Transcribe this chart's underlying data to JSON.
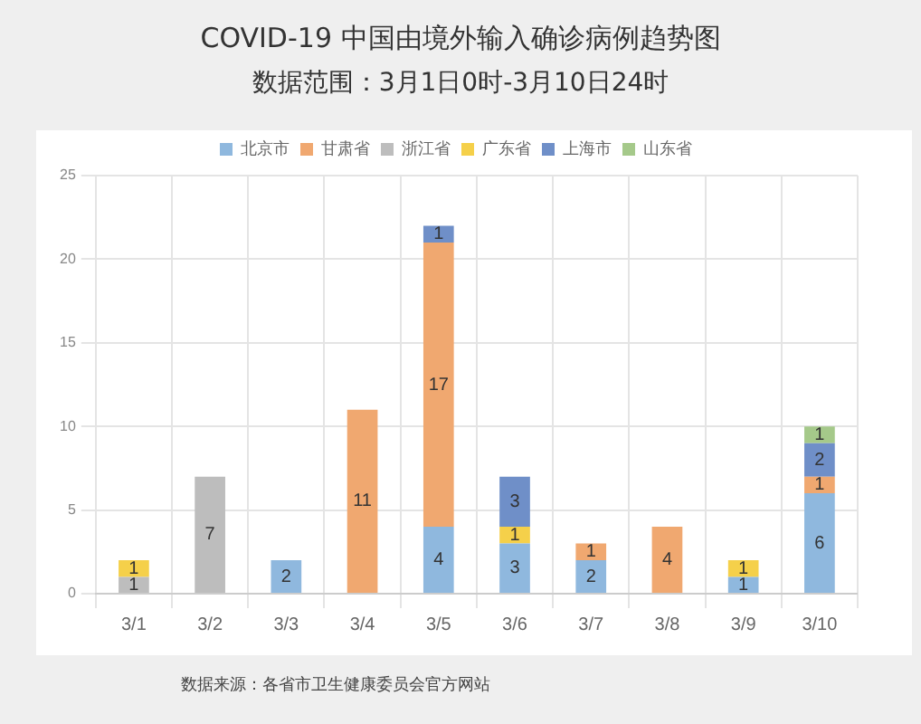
{
  "chart_data": {
    "type": "bar",
    "title": "COVID-19 中国由境外输入确诊病例趋势图",
    "subtitle": "数据范围：3月1日0时-3月10日24时",
    "categories": [
      "3/1",
      "3/2",
      "3/3",
      "3/4",
      "3/5",
      "3/6",
      "3/7",
      "3/8",
      "3/9",
      "3/10"
    ],
    "series": [
      {
        "name": "北京市",
        "color": "#8fb8de",
        "values": [
          null,
          null,
          2,
          null,
          4,
          3,
          2,
          null,
          1,
          6
        ]
      },
      {
        "name": "甘肃省",
        "color": "#f0a870",
        "values": [
          null,
          null,
          null,
          11,
          17,
          null,
          1,
          4,
          null,
          1
        ]
      },
      {
        "name": "浙江省",
        "color": "#bdbdbd",
        "values": [
          1,
          7,
          null,
          null,
          null,
          null,
          null,
          null,
          null,
          null
        ]
      },
      {
        "name": "广东省",
        "color": "#f5d04a",
        "values": [
          1,
          null,
          null,
          null,
          null,
          1,
          null,
          null,
          1,
          null
        ]
      },
      {
        "name": "上海市",
        "color": "#6f8fc8",
        "values": [
          null,
          null,
          null,
          null,
          1,
          3,
          null,
          null,
          null,
          2
        ]
      },
      {
        "name": "山东省",
        "color": "#a5c98a",
        "values": [
          null,
          null,
          null,
          null,
          null,
          null,
          null,
          null,
          null,
          1
        ]
      }
    ],
    "stacked": true,
    "ylim": [
      0,
      25
    ],
    "yticks": [
      0,
      5,
      10,
      15,
      20,
      25
    ],
    "grid": true,
    "legend": "top",
    "data_labels": true,
    "annotations": [
      "数据来源：各省市卫生健康委员会官方网站"
    ]
  }
}
